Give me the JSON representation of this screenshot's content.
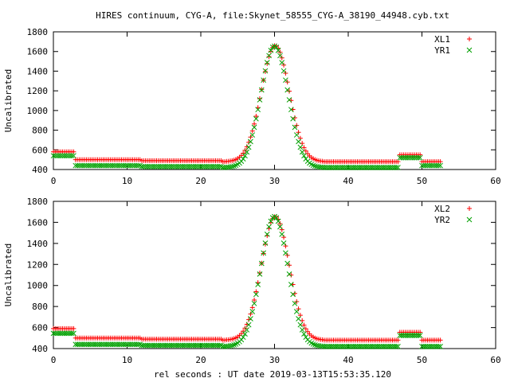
{
  "title": "HIRES continuum, CYG-A, file:Skynet_58555_CYG-A_38190_44948.cyb.txt",
  "xlabel": "rel seconds : UT date 2019-03-13T15:53:35.120",
  "colors": {
    "red": "#ff0000",
    "green": "#00a000"
  },
  "chart_data": [
    {
      "type": "scatter",
      "ylabel": "Uncalibrated",
      "xlim": [
        0,
        60
      ],
      "ylim": [
        400,
        1800
      ],
      "xticks": [
        0,
        10,
        20,
        30,
        40,
        50,
        60
      ],
      "yticks": [
        400,
        600,
        800,
        1000,
        1200,
        1400,
        1600,
        1800
      ],
      "legend_position": "top-right",
      "series": [
        {
          "name": "XL1",
          "marker": "plus",
          "color": "#ff0000",
          "baseline_segments": [
            [
              0,
              3,
              580
            ],
            [
              3,
              12,
              500
            ],
            [
              12,
              23,
              490
            ],
            [
              23,
              47,
              480
            ],
            [
              47,
              50,
              550
            ],
            [
              50,
              52.5,
              480
            ]
          ],
          "peak": {
            "center": 30.1,
            "amplitude": 1180,
            "sigma": 1.9,
            "range": [
              23.5,
              36.5
            ]
          }
        },
        {
          "name": "YR1",
          "marker": "cross",
          "color": "#00a000",
          "baseline_segments": [
            [
              0,
              3,
              540
            ],
            [
              3,
              12,
              440
            ],
            [
              12,
              23,
              430
            ],
            [
              23,
              47,
              420
            ],
            [
              47,
              50,
              520
            ],
            [
              50,
              52.5,
              440
            ]
          ],
          "peak": {
            "center": 30.0,
            "amplitude": 1235,
            "sigma": 1.85,
            "range": [
              23.5,
              36.5
            ]
          }
        }
      ]
    },
    {
      "type": "scatter",
      "ylabel": "Uncalibrated",
      "xlim": [
        0,
        60
      ],
      "ylim": [
        400,
        1800
      ],
      "xticks": [
        0,
        10,
        20,
        30,
        40,
        50,
        60
      ],
      "yticks": [
        400,
        600,
        800,
        1000,
        1200,
        1400,
        1600,
        1800
      ],
      "legend_position": "top-right",
      "series": [
        {
          "name": "XL2",
          "marker": "plus",
          "color": "#ff0000",
          "baseline_segments": [
            [
              0,
              3,
              590
            ],
            [
              3,
              12,
              500
            ],
            [
              12,
              23,
              490
            ],
            [
              23,
              47,
              480
            ],
            [
              47,
              50,
              555
            ],
            [
              50,
              52.5,
              480
            ]
          ],
          "peak": {
            "center": 30.1,
            "amplitude": 1175,
            "sigma": 1.9,
            "range": [
              23.5,
              36.5
            ]
          }
        },
        {
          "name": "YR2",
          "marker": "cross",
          "color": "#00a000",
          "baseline_segments": [
            [
              0,
              3,
              545
            ],
            [
              3,
              12,
              440
            ],
            [
              12,
              23,
              430
            ],
            [
              23,
              47,
              420
            ],
            [
              47,
              50,
              525
            ],
            [
              50,
              52.5,
              420
            ]
          ],
          "peak": {
            "center": 30.0,
            "amplitude": 1235,
            "sigma": 1.85,
            "range": [
              23.5,
              36.5
            ]
          }
        }
      ]
    }
  ]
}
